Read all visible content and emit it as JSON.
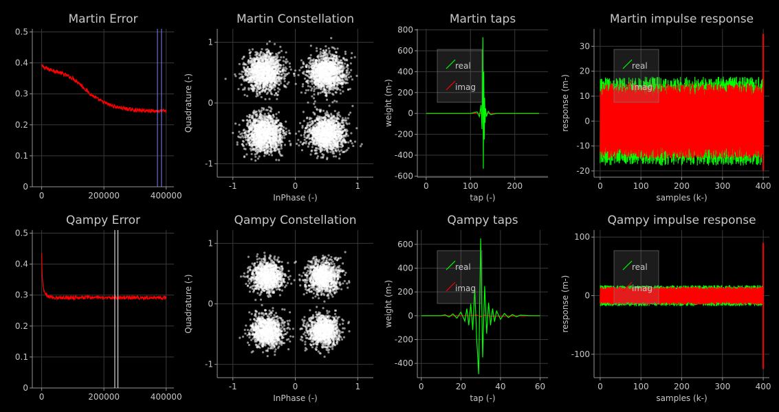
{
  "colors": {
    "background": "#000000",
    "text": "#c8c8c8",
    "grid": "#3a3a3a",
    "axis": "#969696",
    "error_trace": "#ff0000",
    "taps_real": "#00ff00",
    "taps_imag": "#ff0000",
    "constellation_points": "#ffffff",
    "marker_martin": "#8080ff",
    "marker_qampy": "#ffffff"
  },
  "chart_data": [
    {
      "id": "martin_error",
      "type": "line",
      "title": "Martin Error",
      "xlabel": "",
      "ylabel": "",
      "xlim": [
        -30000,
        425000
      ],
      "ylim": [
        0,
        0.51
      ],
      "xticks": [
        0,
        200000,
        400000
      ],
      "xtick_labels": [
        "0",
        "200000",
        "400000"
      ],
      "yticks": [
        0,
        0.1,
        0.2,
        0.3,
        0.4,
        0.5
      ],
      "ytick_labels": [
        "0",
        "0.1",
        "0.2",
        "0.3",
        "0.4",
        "0.5"
      ],
      "grid": true,
      "series": [
        {
          "color": "#ff0000",
          "noise": 0.006,
          "x": [
            0,
            20000,
            40000,
            60000,
            80000,
            100000,
            120000,
            140000,
            160000,
            180000,
            200000,
            220000,
            240000,
            260000,
            280000,
            300000,
            320000,
            340000,
            360000,
            380000,
            400000
          ],
          "y": [
            0.39,
            0.38,
            0.375,
            0.368,
            0.36,
            0.35,
            0.335,
            0.315,
            0.297,
            0.283,
            0.272,
            0.264,
            0.258,
            0.254,
            0.25,
            0.248,
            0.246,
            0.246,
            0.245,
            0.245,
            0.245
          ]
        }
      ],
      "vlines": [
        {
          "x": 372000,
          "color": "#8080ff"
        },
        {
          "x": 385000,
          "color": "#8080ff"
        }
      ]
    },
    {
      "id": "martin_constellation",
      "type": "scatter",
      "title": "Martin Constellation",
      "xlabel": "InPhase (-)",
      "ylabel": "Quadrature (-)",
      "xlim": [
        -1.25,
        1.25
      ],
      "ylim": [
        -1.22,
        1.22
      ],
      "xticks": [
        -1,
        0,
        1
      ],
      "xtick_labels": [
        "-1",
        "0",
        "1"
      ],
      "yticks": [
        -1,
        0,
        1
      ],
      "ytick_labels": [
        "-1",
        "0",
        "1"
      ],
      "grid": true,
      "clusters": [
        {
          "cx": -0.5,
          "cy": 0.5
        },
        {
          "cx": 0.5,
          "cy": 0.5
        },
        {
          "cx": -0.5,
          "cy": -0.5
        },
        {
          "cx": 0.5,
          "cy": -0.5
        }
      ],
      "spread": 0.15,
      "points_per_cluster": 1400
    },
    {
      "id": "martin_taps",
      "type": "line",
      "title": "Martin taps",
      "xlabel": "tap (-)",
      "ylabel": "weight (m-)",
      "xlim": [
        -20,
        275
      ],
      "ylim": [
        -610,
        810
      ],
      "xticks": [
        0,
        100,
        200
      ],
      "xtick_labels": [
        "0",
        "100",
        "200"
      ],
      "yticks": [
        -600,
        -400,
        -200,
        0,
        200,
        400,
        600,
        800
      ],
      "ytick_labels": [
        "-600",
        "-400",
        "-200",
        "0",
        "200",
        "400",
        "600",
        "800"
      ],
      "grid": true,
      "legend": {
        "placement": "top-left",
        "entries": [
          "real",
          "imag"
        ]
      },
      "series": [
        {
          "name": "real",
          "color": "#00ff00",
          "x": [
            0,
            100,
            115,
            120,
            124,
            126,
            127,
            128,
            129,
            130,
            131,
            132,
            133,
            134,
            136,
            140,
            145,
            160,
            255
          ],
          "y": [
            0,
            0,
            15,
            -30,
            80,
            -150,
            240,
            730,
            -530,
            400,
            -250,
            150,
            -90,
            50,
            -30,
            20,
            -10,
            0,
            0
          ]
        },
        {
          "name": "imag",
          "color": "#ff0000",
          "x": [
            0,
            120,
            126,
            128,
            130,
            132,
            140,
            255
          ],
          "y": [
            0,
            0,
            5,
            -8,
            6,
            -4,
            0,
            0
          ]
        }
      ]
    },
    {
      "id": "martin_impulse",
      "type": "line",
      "title": "Martin impulse response",
      "xlabel": "samples (k-)",
      "ylabel": "response (m-)",
      "xlim": [
        -15,
        415
      ],
      "ylim": [
        -22.5,
        37
      ],
      "xticks": [
        0,
        100,
        200,
        300,
        400
      ],
      "xtick_labels": [
        "0",
        "100",
        "200",
        "300",
        "400"
      ],
      "yticks": [
        -20,
        -10,
        0,
        10,
        20,
        30
      ],
      "ytick_labels": [
        "-20",
        "-10",
        "0",
        "10",
        "20",
        "30"
      ],
      "grid": true,
      "legend": {
        "placement": "top-left",
        "entries": [
          "real",
          "imag"
        ]
      },
      "band": {
        "x_start": 0,
        "x_end": 400,
        "amplitude": 15
      },
      "spike": {
        "x": 400,
        "max": 35,
        "min": -20
      },
      "series": [
        {
          "name": "real",
          "color": "#00ff00"
        },
        {
          "name": "imag",
          "color": "#ff0000"
        }
      ]
    },
    {
      "id": "qampy_error",
      "type": "line",
      "title": "Qampy Error",
      "xlabel": "",
      "ylabel": "",
      "xlim": [
        -30000,
        425000
      ],
      "ylim": [
        0,
        0.51
      ],
      "xticks": [
        0,
        200000,
        400000
      ],
      "xtick_labels": [
        "0",
        "200000",
        "400000"
      ],
      "yticks": [
        0,
        0.1,
        0.2,
        0.3,
        0.4,
        0.5
      ],
      "ytick_labels": [
        "0",
        "0.1",
        "0.2",
        "0.3",
        "0.4",
        "0.5"
      ],
      "grid": true,
      "series": [
        {
          "color": "#ff0000",
          "noise": 0.006,
          "x": [
            0,
            2000,
            5000,
            10000,
            20000,
            40000,
            100000,
            200000,
            300000,
            400000
          ],
          "y": [
            0.43,
            0.36,
            0.32,
            0.305,
            0.295,
            0.292,
            0.292,
            0.292,
            0.292,
            0.292
          ]
        }
      ],
      "vlines": [
        {
          "x": 235000,
          "color": "#ffffff"
        },
        {
          "x": 245000,
          "color": "#ffffff"
        }
      ]
    },
    {
      "id": "qampy_constellation",
      "type": "scatter",
      "title": "Qampy Constellation",
      "xlabel": "InPhase (-)",
      "ylabel": "Quadrature (-)",
      "xlim": [
        -1.25,
        1.25
      ],
      "ylim": [
        -1.22,
        1.22
      ],
      "xticks": [
        -1,
        0,
        1
      ],
      "xtick_labels": [
        "-1",
        "0",
        "1"
      ],
      "yticks": [
        -1,
        0,
        1
      ],
      "ytick_labels": [
        "-1",
        "0",
        "1"
      ],
      "grid": true,
      "clusters": [
        {
          "cx": -0.45,
          "cy": 0.45
        },
        {
          "cx": 0.45,
          "cy": 0.45
        },
        {
          "cx": -0.45,
          "cy": -0.45
        },
        {
          "cx": 0.45,
          "cy": -0.45
        }
      ],
      "spread": 0.13,
      "points_per_cluster": 1100
    },
    {
      "id": "qampy_taps",
      "type": "line",
      "title": "Qampy taps",
      "xlabel": "tap (-)",
      "ylabel": "weight (m-)",
      "xlim": [
        -2,
        64
      ],
      "ylim": [
        -520,
        720
      ],
      "xticks": [
        0,
        20,
        40,
        60
      ],
      "xtick_labels": [
        "0",
        "20",
        "40",
        "60"
      ],
      "yticks": [
        -400,
        -200,
        0,
        200,
        400,
        600
      ],
      "ytick_labels": [
        "-400",
        "-200",
        "0",
        "200",
        "400",
        "600"
      ],
      "grid": true,
      "legend": {
        "placement": "top-left",
        "entries": [
          "real",
          "imag"
        ]
      },
      "series": [
        {
          "name": "real",
          "color": "#00ff00",
          "x": [
            0,
            10,
            12,
            14,
            16,
            18,
            20,
            22,
            23,
            24,
            25,
            26,
            27,
            28,
            29,
            30,
            31,
            32,
            33,
            34,
            35,
            36,
            37,
            38,
            40,
            42,
            44,
            46,
            48,
            50,
            55,
            60
          ],
          "y": [
            0,
            0,
            8,
            -10,
            15,
            -20,
            30,
            -45,
            60,
            -80,
            100,
            -120,
            230,
            -200,
            -490,
            650,
            -350,
            250,
            -150,
            110,
            -80,
            60,
            -50,
            40,
            -30,
            20,
            -15,
            10,
            -8,
            5,
            0,
            0
          ]
        },
        {
          "name": "imag",
          "color": "#ff0000",
          "x": [
            0,
            25,
            28,
            30,
            32,
            35,
            60
          ],
          "y": [
            0,
            0,
            6,
            -8,
            5,
            -3,
            0
          ]
        }
      ]
    },
    {
      "id": "qampy_impulse",
      "type": "line",
      "title": "Qampy impulse response",
      "xlabel": "samples (k-)",
      "ylabel": "response (m-)",
      "xlim": [
        -15,
        415
      ],
      "ylim": [
        -140,
        112
      ],
      "xticks": [
        0,
        100,
        200,
        300,
        400
      ],
      "xtick_labels": [
        "0",
        "100",
        "200",
        "300",
        "400"
      ],
      "yticks": [
        -100,
        0,
        100
      ],
      "ytick_labels": [
        "-100",
        "0",
        "100"
      ],
      "grid": true,
      "legend": {
        "placement": "top-left",
        "entries": [
          "real",
          "imag"
        ]
      },
      "band": {
        "x_start": 0,
        "x_end": 400,
        "amplitude": 15
      },
      "spike": {
        "x": 400,
        "max": 90,
        "min": -125
      },
      "series": [
        {
          "name": "real",
          "color": "#00ff00"
        },
        {
          "name": "imag",
          "color": "#ff0000"
        }
      ]
    }
  ]
}
